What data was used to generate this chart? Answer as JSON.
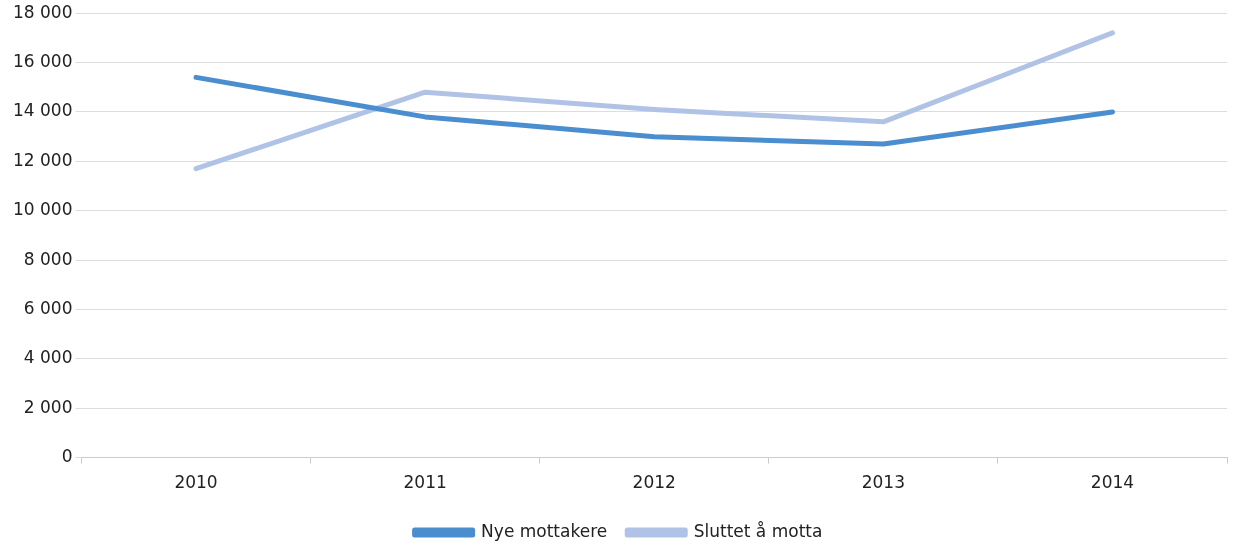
{
  "chart_data": {
    "type": "line",
    "categories": [
      "2010",
      "2011",
      "2012",
      "2013",
      "2014"
    ],
    "series": [
      {
        "name": "Nye mottakere",
        "color": "#4a8ecf",
        "values": [
          15400,
          13800,
          13000,
          12700,
          14000
        ]
      },
      {
        "name": "Sluttet å motta",
        "color": "#b0c3e6",
        "values": [
          11700,
          14800,
          14100,
          13600,
          17200
        ]
      }
    ],
    "ylim": [
      0,
      18000
    ],
    "yticks": [
      0,
      {
        "value": 2000,
        "label": "2 000"
      },
      {
        "value": 4000,
        "label": "4 000"
      },
      {
        "value": 6000,
        "label": "6 000"
      },
      {
        "value": 8000,
        "label": "8 000"
      },
      {
        "value": 10000,
        "label": "10 000"
      },
      {
        "value": 12000,
        "label": "12 000"
      },
      {
        "value": 14000,
        "label": "14 000"
      },
      {
        "value": 16000,
        "label": "16 000"
      },
      {
        "value": 18000,
        "label": "18 000"
      }
    ],
    "grid": "y",
    "legend": "bottom",
    "marker": "none",
    "line_style": "solid"
  }
}
